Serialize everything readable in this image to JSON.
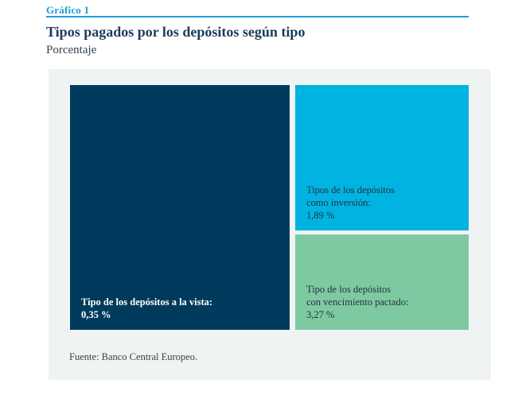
{
  "page": {
    "kicker": "Gráfico 1",
    "title": "Tipos pagados por los depósitos según tipo",
    "subtitle": "Porcentaje",
    "source": "Fuente: Banco Central Europeo."
  },
  "colors": {
    "accent_blue": "#1b9ed9",
    "title_navy": "#1c3a5c",
    "panel_background": "#f0f3f4",
    "block_navy": "#003a5c",
    "block_cyan": "#00b4e2",
    "block_green": "#7fc9a1"
  },
  "chart_data": {
    "type": "treemap",
    "title": "Tipos pagados por los depósitos según tipo",
    "unit": "Porcentaje",
    "legend_position": "none",
    "items": [
      {
        "name": "Tipo de los depósitos a la vista",
        "value": 0.35,
        "value_label": "0,35 %",
        "label": "Tipo de los depósitos a la vista:\n0,35 %",
        "color": "#003a5c",
        "text_color": "#ffffff"
      },
      {
        "name": "Tipos de los depósitos como inversión",
        "value": 1.89,
        "value_label": "1,89 %",
        "label": "Tipos de los depósitos\ncomo inversión:\n1,89 %",
        "color": "#00b4e2",
        "text_color": "#223240"
      },
      {
        "name": "Tipo de los depósitos con vencimiento pactado",
        "value": 3.27,
        "value_label": "3,27 %",
        "label": "Tipo de los depósitos\ncon vencimiento pactado:\n3,27 %",
        "color": "#7fc9a1",
        "text_color": "#223240"
      }
    ]
  }
}
